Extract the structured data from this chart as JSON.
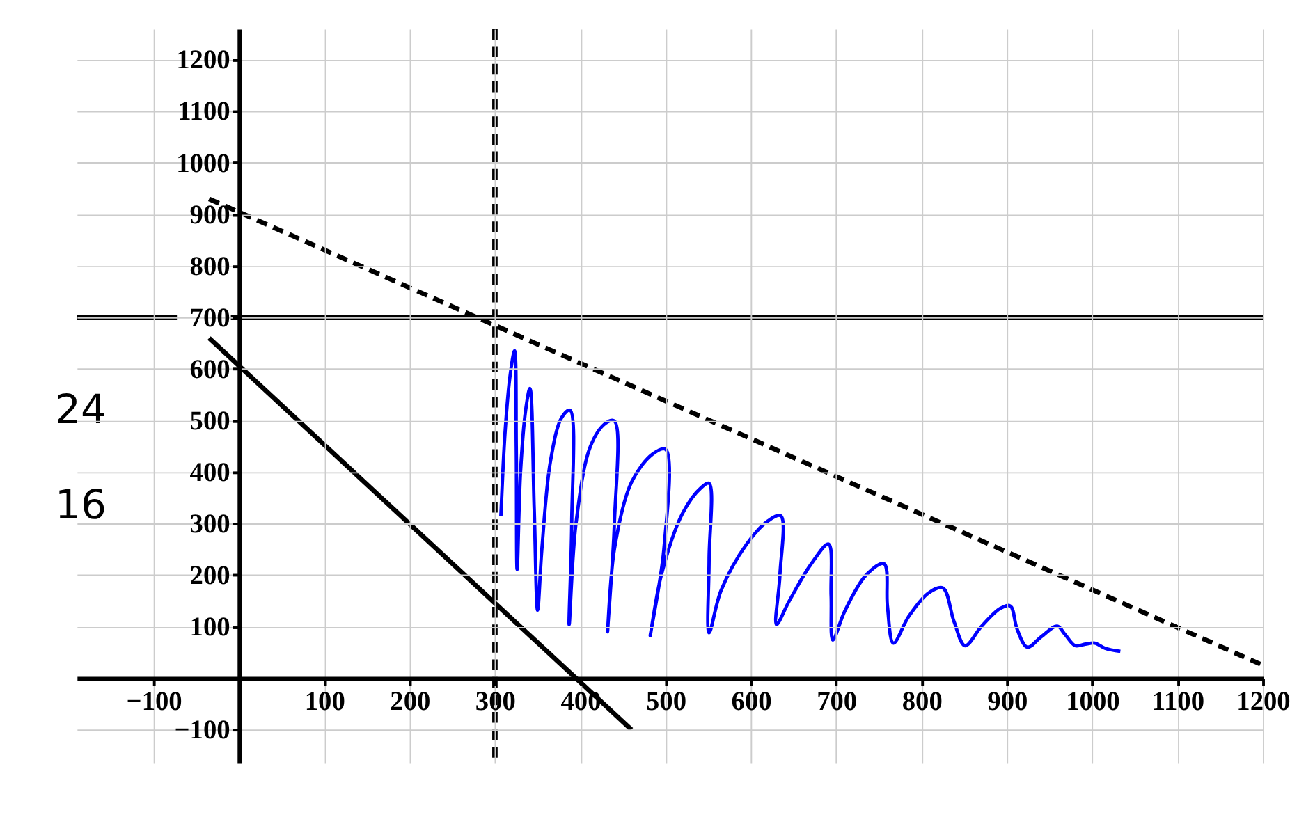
{
  "chart_data": {
    "type": "line",
    "xlim": [
      -190,
      1200
    ],
    "ylim": [
      -165,
      1260
    ],
    "xticks": [
      -100,
      100,
      200,
      300,
      400,
      500,
      600,
      700,
      800,
      900,
      1000,
      1100,
      1200
    ],
    "yticks": [
      -100,
      100,
      200,
      300,
      400,
      500,
      600,
      700,
      800,
      900,
      1000,
      1100,
      1200
    ],
    "grid": true,
    "marker": "none",
    "ref_lines": [
      {
        "axis": "y",
        "value": 700,
        "color": "#000000",
        "line_style": "solid"
      },
      {
        "axis": "x",
        "value": 300,
        "color": "#000000",
        "line_style": "dashed"
      }
    ],
    "annotations": [
      "24",
      "16"
    ],
    "series": [
      {
        "color": "#000000",
        "line_style": "dashed",
        "x": [
          -35,
          1200
        ],
        "values": [
          930,
          25
        ]
      },
      {
        "color": "#000000",
        "line_style": "solid",
        "x": [
          -35,
          460
        ],
        "values": [
          660,
          -100
        ]
      },
      {
        "color": "#0000ff",
        "line_style": "solid",
        "x": [
          307,
          312,
          318,
          323,
          325,
          326,
          330,
          336,
          341,
          346,
          350,
          355,
          365,
          378,
          388,
          390,
          387,
          395,
          412,
          430,
          440,
          440,
          432,
          440,
          460,
          485,
          500,
          498,
          482,
          495,
          520,
          542,
          551,
          551,
          551,
          565,
          595,
          620,
          635,
          634,
          630,
          645,
          670,
          691,
          694,
          696,
          710,
          735,
          756,
          760,
          767,
          785,
          808,
          825,
          838,
          851,
          870,
          892,
          904,
          912,
          924,
          940,
          959,
          968,
          980,
          992,
          1003,
          1015,
          1033
        ],
        "values": [
          315,
          480,
          590,
          635,
          450,
          211,
          400,
          520,
          562,
          330,
          132,
          250,
          420,
          505,
          520,
          300,
          104,
          300,
          450,
          495,
          499,
          300,
          90,
          250,
          380,
          435,
          444,
          250,
          82,
          200,
          320,
          370,
          378,
          230,
          88,
          170,
          260,
          305,
          315,
          200,
          104,
          150,
          220,
          260,
          160,
          74,
          130,
          200,
          222,
          140,
          68,
          120,
          165,
          175,
          110,
          63,
          100,
          135,
          140,
          95,
          60,
          80,
          101,
          85,
          63,
          66,
          68,
          58,
          52
        ]
      }
    ]
  }
}
